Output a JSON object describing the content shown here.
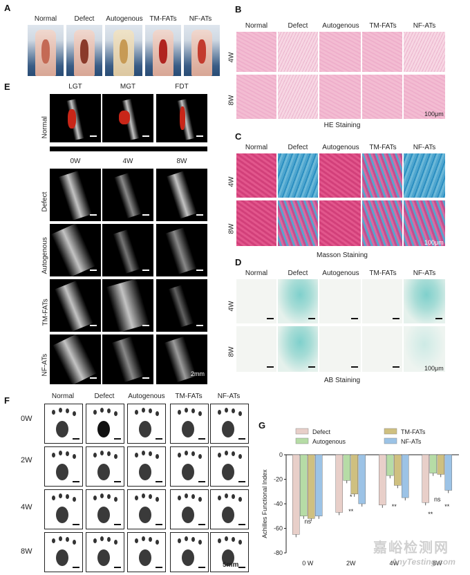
{
  "panel_letters": {
    "a": "A",
    "b": "B",
    "c": "C",
    "d": "D",
    "e": "E",
    "f": "F",
    "g": "G"
  },
  "groups": [
    "Normal",
    "Defect",
    "Autogenous",
    "TM-FATs",
    "NF-ATs"
  ],
  "panel_e": {
    "muscles": [
      "LGT",
      "MGT",
      "FDT"
    ],
    "normal_label": "Normal",
    "timepoints": [
      "0W",
      "4W",
      "8W"
    ],
    "rows": [
      "Defect",
      "Autogenous",
      "TM-FATs",
      "NF-ATs"
    ],
    "scale_text": "2mm"
  },
  "stain_rows": [
    "4W",
    "8W"
  ],
  "stains": {
    "he": "HE  Staining",
    "masson": "Masson Staining",
    "ab": "AB Staining"
  },
  "scale_100": "100μm",
  "panel_f": {
    "rows": [
      "0W",
      "2W",
      "4W",
      "8W"
    ],
    "scale_text": "5mm"
  },
  "chart_data": {
    "type": "bar",
    "categories": [
      "0 W",
      "2W",
      "4W",
      "8W"
    ],
    "series": [
      {
        "name": "Defect",
        "color": "#e8cfc9",
        "values": [
          -65,
          -47,
          -41,
          -39
        ]
      },
      {
        "name": "Autogenous",
        "color": "#b6dca6",
        "values": [
          -50,
          -21,
          -17,
          -15
        ]
      },
      {
        "name": "TM-FATs",
        "color": "#cfc080",
        "values": [
          -52,
          -32,
          -25,
          -16
        ]
      },
      {
        "name": "NF-ATs",
        "color": "#9cc3e6",
        "values": [
          -50,
          -40,
          -35,
          -29
        ]
      }
    ],
    "ylabel": "Achilles Functional Index",
    "ylim": [
      -80,
      0
    ],
    "yticks": [
      0,
      -20,
      -40,
      -60,
      -80
    ],
    "annotations": [
      "ns",
      "**",
      "*",
      "**",
      "**",
      "ns",
      "**"
    ]
  },
  "watermark": {
    "cn": "嘉峪检测网",
    "en": "AnyTesting.com"
  }
}
